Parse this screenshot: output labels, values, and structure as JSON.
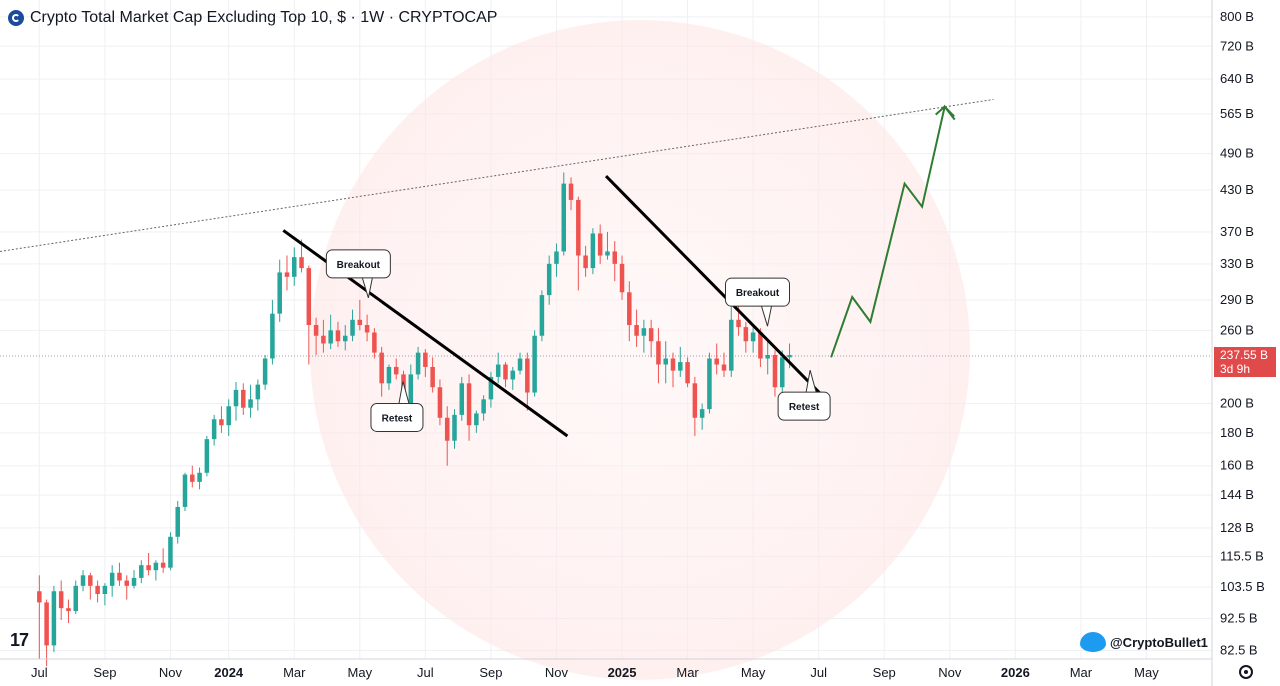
{
  "header": {
    "title": "Crypto Total Market Cap Excluding Top 10, $ · 1W · CRYPTOCAP"
  },
  "price_tag": {
    "value": "237.55 B",
    "countdown": "3d 9h"
  },
  "watermark": {
    "handle": "@CryptoBullet1",
    "tv_logo": "17"
  },
  "colors": {
    "up": "#26a69a",
    "down": "#ef5350",
    "trend": "#000000",
    "projection": "#2e7d32",
    "grid": "#eef0f3"
  },
  "chart_data": {
    "type": "candlestick",
    "scale": "log",
    "y_ticks": [
      "800 B",
      "720 B",
      "640 B",
      "565 B",
      "490 B",
      "430 B",
      "370 B",
      "330 B",
      "290 B",
      "260 B",
      "200 B",
      "180 B",
      "160 B",
      "144 B",
      "128 B",
      "115.5 B",
      "103.5 B",
      "92.5 B",
      "82.5 B"
    ],
    "y_tick_values": [
      800,
      720,
      640,
      565,
      490,
      430,
      370,
      330,
      290,
      260,
      200,
      180,
      160,
      144,
      128,
      115.5,
      103.5,
      92.5,
      82.5
    ],
    "y_range": [
      80,
      850
    ],
    "x_ticks": [
      "Jul",
      "Sep",
      "Nov",
      "2024",
      "Mar",
      "May",
      "Jul",
      "Sep",
      "Nov",
      "2025",
      "Mar",
      "May",
      "Jul",
      "Sep",
      "Nov",
      "2026",
      "Mar",
      "May"
    ],
    "x_tick_weeks": [
      0,
      9,
      18,
      26,
      35,
      44,
      53,
      62,
      71,
      80,
      89,
      98,
      107,
      116,
      125,
      134,
      143,
      152
    ],
    "x_range_weeks": [
      -5.4,
      161
    ],
    "candles": [
      [
        102,
        108,
        80,
        98
      ],
      [
        98,
        99,
        78,
        84
      ],
      [
        84,
        104,
        82,
        102
      ],
      [
        102,
        106,
        92,
        96
      ],
      [
        96,
        99,
        91,
        95
      ],
      [
        95,
        106,
        94,
        104
      ],
      [
        104,
        110,
        102,
        108
      ],
      [
        108,
        109,
        99,
        104
      ],
      [
        104,
        106,
        98,
        101
      ],
      [
        101,
        105,
        97,
        104
      ],
      [
        104,
        112,
        100,
        109
      ],
      [
        109,
        113,
        104,
        106
      ],
      [
        106,
        108,
        99,
        104
      ],
      [
        104,
        110,
        103,
        107
      ],
      [
        107,
        114,
        105,
        112
      ],
      [
        112,
        117,
        108,
        110
      ],
      [
        110,
        114,
        106,
        113
      ],
      [
        113,
        119,
        109,
        111
      ],
      [
        111,
        126,
        110,
        124
      ],
      [
        124,
        141,
        121,
        138
      ],
      [
        138,
        156,
        136,
        155
      ],
      [
        155,
        160,
        148,
        151
      ],
      [
        151,
        159,
        147,
        156
      ],
      [
        156,
        178,
        154,
        176
      ],
      [
        176,
        192,
        172,
        189
      ],
      [
        189,
        198,
        180,
        185
      ],
      [
        185,
        203,
        178,
        198
      ],
      [
        198,
        216,
        188,
        210
      ],
      [
        210,
        215,
        192,
        197
      ],
      [
        197,
        214,
        190,
        203
      ],
      [
        203,
        218,
        195,
        214
      ],
      [
        214,
        238,
        210,
        235
      ],
      [
        235,
        290,
        230,
        276
      ],
      [
        276,
        335,
        268,
        320
      ],
      [
        320,
        340,
        300,
        315
      ],
      [
        315,
        350,
        305,
        338
      ],
      [
        338,
        360,
        320,
        325
      ],
      [
        325,
        328,
        230,
        265
      ],
      [
        265,
        272,
        238,
        255
      ],
      [
        255,
        270,
        240,
        248
      ],
      [
        248,
        275,
        243,
        260
      ],
      [
        260,
        268,
        245,
        250
      ],
      [
        250,
        265,
        242,
        255
      ],
      [
        255,
        280,
        250,
        270
      ],
      [
        270,
        290,
        260,
        265
      ],
      [
        265,
        275,
        250,
        258
      ],
      [
        258,
        262,
        235,
        240
      ],
      [
        240,
        245,
        205,
        215
      ],
      [
        215,
        230,
        210,
        228
      ],
      [
        228,
        235,
        218,
        222
      ],
      [
        222,
        225,
        185,
        195
      ],
      [
        195,
        230,
        190,
        222
      ],
      [
        222,
        245,
        218,
        240
      ],
      [
        240,
        243,
        220,
        228
      ],
      [
        228,
        236,
        208,
        212
      ],
      [
        212,
        218,
        185,
        190
      ],
      [
        190,
        198,
        160,
        175
      ],
      [
        175,
        196,
        170,
        192
      ],
      [
        192,
        220,
        188,
        215
      ],
      [
        215,
        222,
        175,
        185
      ],
      [
        185,
        195,
        180,
        193
      ],
      [
        193,
        206,
        188,
        203
      ],
      [
        203,
        224,
        197,
        220
      ],
      [
        220,
        240,
        215,
        230
      ],
      [
        230,
        232,
        212,
        218
      ],
      [
        218,
        228,
        210,
        225
      ],
      [
        225,
        240,
        222,
        235
      ],
      [
        235,
        240,
        195,
        208
      ],
      [
        208,
        260,
        205,
        255
      ],
      [
        255,
        300,
        250,
        295
      ],
      [
        295,
        340,
        285,
        330
      ],
      [
        330,
        355,
        315,
        345
      ],
      [
        345,
        458,
        340,
        440
      ],
      [
        440,
        450,
        400,
        415
      ],
      [
        415,
        420,
        300,
        340
      ],
      [
        340,
        352,
        315,
        325
      ],
      [
        325,
        375,
        318,
        368
      ],
      [
        368,
        380,
        330,
        340
      ],
      [
        340,
        370,
        335,
        345
      ],
      [
        345,
        358,
        310,
        330
      ],
      [
        330,
        340,
        290,
        298
      ],
      [
        298,
        310,
        250,
        265
      ],
      [
        265,
        280,
        245,
        255
      ],
      [
        255,
        270,
        240,
        262
      ],
      [
        262,
        270,
        236,
        250
      ],
      [
        250,
        262,
        215,
        230
      ],
      [
        230,
        250,
        215,
        235
      ],
      [
        235,
        240,
        212,
        225
      ],
      [
        225,
        245,
        220,
        232
      ],
      [
        232,
        236,
        212,
        215
      ],
      [
        215,
        220,
        178,
        190
      ],
      [
        190,
        200,
        182,
        196
      ],
      [
        196,
        240,
        193,
        235
      ],
      [
        235,
        248,
        222,
        230
      ],
      [
        230,
        240,
        220,
        225
      ],
      [
        225,
        300,
        220,
        270
      ],
      [
        270,
        295,
        255,
        263
      ],
      [
        263,
        268,
        240,
        250
      ],
      [
        250,
        265,
        240,
        258
      ],
      [
        258,
        262,
        228,
        235
      ],
      [
        235,
        250,
        222,
        238
      ],
      [
        238,
        242,
        205,
        212
      ],
      [
        212,
        242,
        208,
        236
      ],
      [
        236,
        248,
        227,
        238
      ]
    ],
    "annotations": [
      {
        "label": "Breakout",
        "week": 43.8
      },
      {
        "label": "Retest",
        "week": 49.1
      },
      {
        "label": "Breakout",
        "week": 98.6
      },
      {
        "label": "Retest",
        "week": 105
      }
    ],
    "resistance_line": [
      [
        -5.4,
        345
      ],
      [
        131,
        595
      ]
    ],
    "trendlines": [
      [
        [
          33.5,
          372
        ],
        [
          72.5,
          178
        ]
      ],
      [
        [
          77.8,
          452
        ],
        [
          108,
          203
        ]
      ]
    ],
    "projection": [
      [
        108.7,
        236
      ],
      [
        111.6,
        293
      ],
      [
        114.1,
        268
      ],
      [
        118.8,
        440
      ],
      [
        121.2,
        405
      ],
      [
        124.3,
        580
      ],
      [
        125.6,
        560
      ]
    ]
  }
}
